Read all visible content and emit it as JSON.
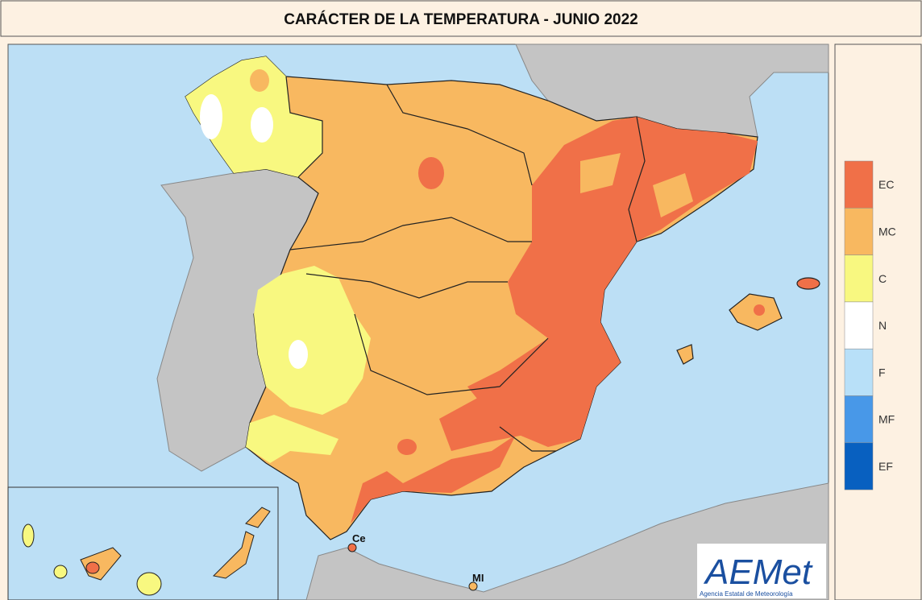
{
  "title": "CARÁCTER DE LA TEMPERATURA - JUNIO 2022",
  "legend": [
    {
      "label": "EC",
      "color": "#f07048"
    },
    {
      "label": "MC",
      "color": "#f8b860"
    },
    {
      "label": "C",
      "color": "#f8f880"
    },
    {
      "label": "N",
      "color": "#ffffff"
    },
    {
      "label": "F",
      "color": "#b8e0f8"
    },
    {
      "label": "MF",
      "color": "#4898e8"
    },
    {
      "label": "EF",
      "color": "#0860c0"
    }
  ],
  "places": [
    {
      "label": "Ce"
    },
    {
      "label": "MI"
    }
  ],
  "logo": {
    "text": "AEMet",
    "subtitle": "Agencia Estatal de Meteorología"
  }
}
